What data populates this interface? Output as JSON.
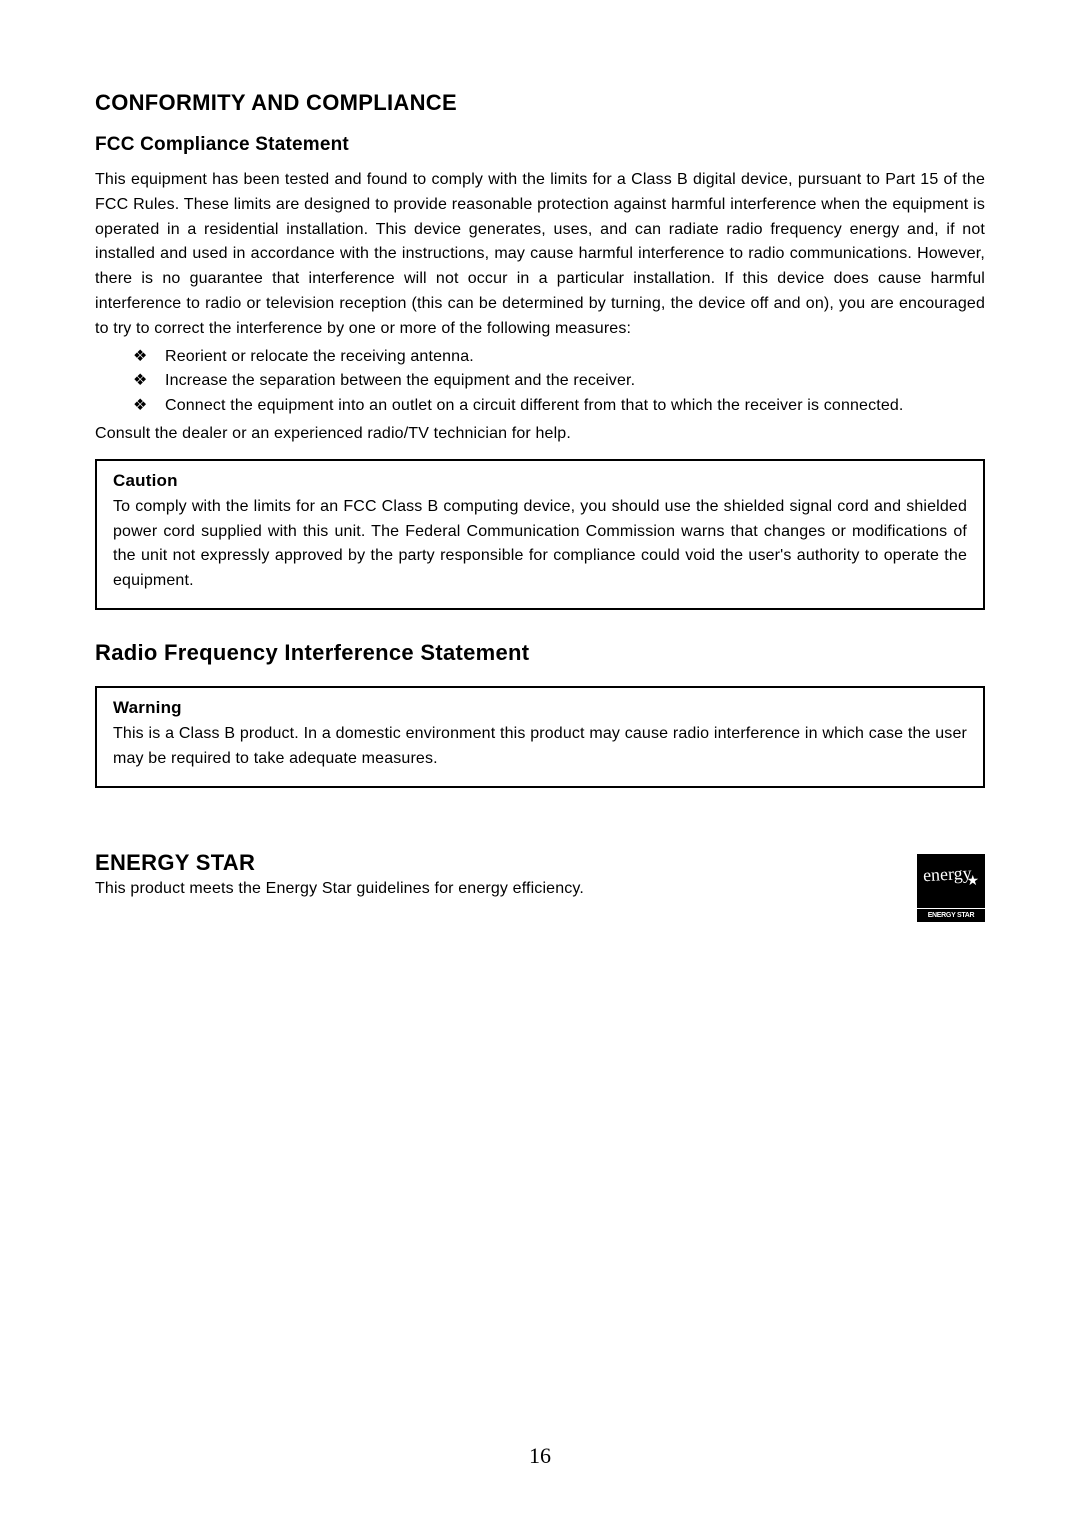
{
  "colors": {
    "text": "#000000",
    "background": "#ffffff",
    "box_border": "#000000",
    "logo_bg": "#000000",
    "logo_fg": "#ffffff"
  },
  "fontsizes": {
    "h1": 22,
    "h2": 19,
    "body": 16,
    "box_title": 17,
    "page_num": 22
  },
  "section1": {
    "title": "CONFORMITY AND COMPLIANCE",
    "sub": "FCC Compliance Statement",
    "para": "This equipment has been tested and found to comply with the limits for a Class B digital device, pursuant to Part 15 of the FCC Rules. These limits are designed to provide reasonable protection against harmful interference when the equipment is operated in a residential installation. This device generates, uses, and can radiate radio frequency energy and, if not installed and used in accordance with the instructions, may cause harmful interference to radio communications. However, there is no guarantee that interference will not occur in a particular installation. If this device does cause harmful interference to radio or television reception (this can be determined by turning, the device off and on), you are encouraged to try to correct the interference by one or more of the following measures:",
    "bullets": [
      "Reorient or relocate the receiving antenna.",
      "Increase the separation between the equipment and the receiver.",
      "Connect the equipment into an outlet on a circuit different from that to which the receiver is connected."
    ],
    "after": "Consult the dealer or an experienced radio/TV technician for help.",
    "bullet_symbol": "❖"
  },
  "caution_box": {
    "title": "Caution",
    "text": "To comply with the limits for an FCC Class B computing device, you should use the shielded signal cord and shielded power cord supplied with this unit. The Federal Communication Commission warns that changes or modifications of the unit not expressly approved by the party responsible for compliance could void the user's authority to operate the equipment."
  },
  "section2": {
    "title": "Radio Frequency Interference Statement"
  },
  "warning_box": {
    "title": "Warning",
    "text": "This is a Class B product. In a domestic environment this product may cause radio interference in which case the user may be required to take adequate measures."
  },
  "energy": {
    "title": "ENERGY STAR",
    "text": "This product meets the Energy Star guidelines for energy efficiency.",
    "logo_band": "ENERGY STAR",
    "logo_script": "energy",
    "logo_star": "★"
  },
  "page_number": "16"
}
